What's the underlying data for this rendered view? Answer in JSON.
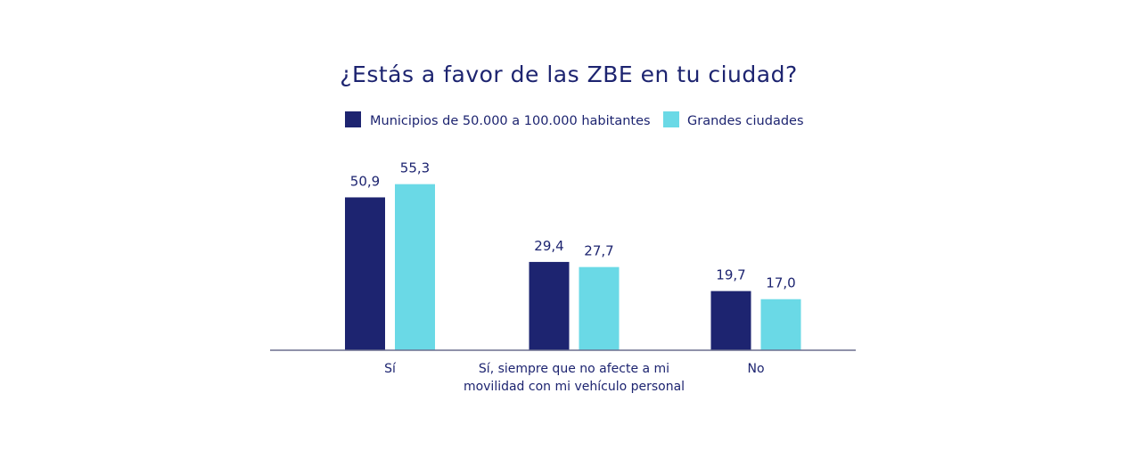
{
  "chart_data": {
    "type": "bar",
    "title": "¿Estás a favor de las ZBE en tu ciudad?",
    "xlabel": "",
    "ylabel": "",
    "ylim": [
      0,
      60
    ],
    "grid": false,
    "legend_position": "top-center",
    "categories": [
      [
        "Sí"
      ],
      [
        "Sí, siempre que no afecte a mi",
        "movilidad con mi vehículo personal"
      ],
      [
        "No"
      ]
    ],
    "series": [
      {
        "name": "Municipios de 50.000 a 100.000 habitantes",
        "color": "#1d2470",
        "values": [
          50.9,
          29.4,
          19.7
        ],
        "labels": [
          "50,9",
          "29,4",
          "19,7"
        ]
      },
      {
        "name": "Grandes ciudades",
        "color": "#6ad9e6",
        "values": [
          55.3,
          27.7,
          17.0
        ],
        "labels": [
          "55,3",
          "27,7",
          "17,0"
        ]
      }
    ]
  },
  "colors": {
    "text": "#1d2470",
    "axis": "#6b6f8e"
  }
}
